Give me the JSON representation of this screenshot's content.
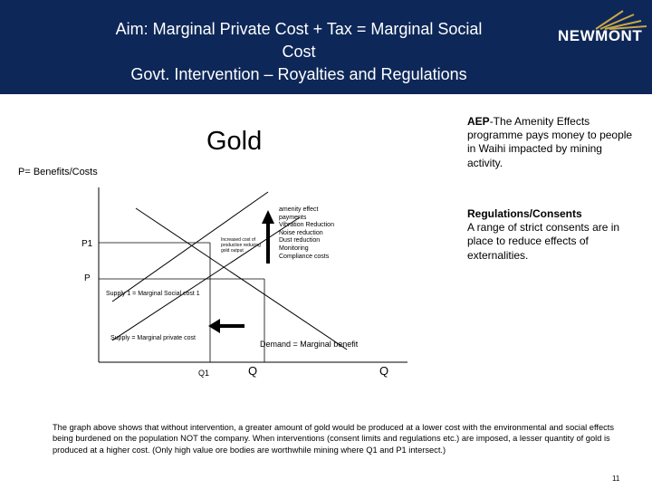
{
  "header": {
    "title_lines": [
      "Aim: Marginal Private Cost + Tax = Marginal Social",
      "Cost",
      "Govt. Intervention – Royalties and Regulations"
    ],
    "logo_text": "NEWMONT",
    "background_color": "#0d2758"
  },
  "diagram": {
    "heading": "Gold",
    "axis_title": "P= Benefits/Costs",
    "price_labels": {
      "p1": "P1",
      "p": "P"
    },
    "quantity_labels": {
      "q1": "Q1",
      "q": "Q",
      "q_end": "Q"
    },
    "curves": {
      "supply1": "Supply 1 = Marginal Social cost 1",
      "supply": "Supply = Marginal private cost",
      "demand": "Demand = Marginal benefit"
    },
    "impacts_note": "Increased cost of production reducing gold output",
    "effects_list": [
      "amenity effect",
      "payments",
      "Vibration Reduction",
      "Noise reduction",
      "Dust reduction",
      "Monitoring",
      "Compliance costs"
    ]
  },
  "sidebar": {
    "aep_label": "AEP",
    "aep_text": "-The Amenity Effects programme pays money to people in Waihi impacted by mining activity.",
    "regulations_label": "Regulations/Consents",
    "regulations_text": "A range of strict consents are in place to reduce effects of externalities."
  },
  "caption": "The graph above shows that without intervention, a greater amount of gold would be produced at a lower cost with the environmental and social effects being burdened on the population NOT the company. When interventions (consent limits and regulations etc.) are imposed, a lesser quantity of gold is produced at a higher cost. (Only high value ore bodies are worthwhile mining where Q1 and P1 intersect.)",
  "page_number": "11"
}
